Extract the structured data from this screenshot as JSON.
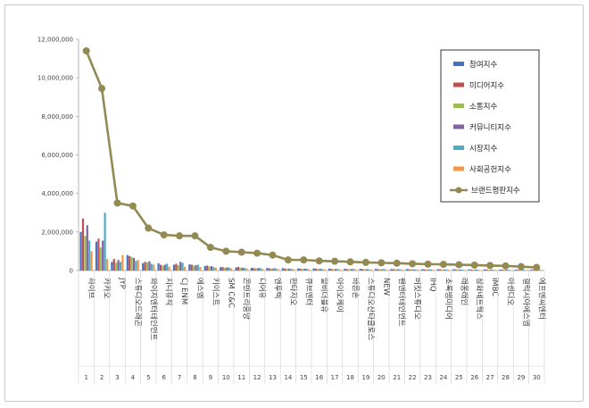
{
  "chart_data": {
    "type": "bar",
    "title": "",
    "xlabel": "",
    "ylabel": "",
    "ylim": [
      0,
      12000000
    ],
    "yticks": [
      "0",
      "2,000,000",
      "4,000,000",
      "6,000,000",
      "8,000,000",
      "10,000,000",
      "12,000,000"
    ],
    "categories": [
      "하이브",
      "카카오",
      "JYP",
      "스튜디오드래곤",
      "와이지엔터테인먼트",
      "지니뮤직",
      "CJ ENM",
      "에스엠",
      "키이스트",
      "SM C&C",
      "콘텐트리중앙",
      "디어유",
      "엔투텍",
      "판타지오",
      "큐브엔터",
      "알비더블유",
      "아이오케이",
      "바른손",
      "스튜디오산타클로스",
      "NEW",
      "팬엔터테인먼트",
      "버킷스튜디오",
      "IHQ",
      "초록뱀미디어",
      "래몽래인",
      "삼화네트웍스",
      "iMBC",
      "아센디오",
      "갤럭시아에스엠",
      "에프엔씨엔터"
    ],
    "numbers": [
      "1",
      "2",
      "3",
      "4",
      "5",
      "6",
      "7",
      "8",
      "9",
      "10",
      "11",
      "12",
      "13",
      "14",
      "15",
      "16",
      "17",
      "18",
      "19",
      "20",
      "21",
      "22",
      "23",
      "24",
      "25",
      "26",
      "27",
      "28",
      "29",
      "30"
    ],
    "series": [
      {
        "name": "참여지수",
        "color": "#4472C4",
        "values": [
          2000000,
          1500000,
          450000,
          800000,
          380000,
          380000,
          300000,
          320000,
          230000,
          170000,
          160000,
          140000,
          130000,
          120000,
          110000,
          110000,
          100000,
          95000,
          90000,
          85000,
          80000,
          75000,
          70000,
          70000,
          65000,
          60000,
          55000,
          50000,
          50000,
          45000
        ]
      },
      {
        "name": "미디어지수",
        "color": "#C0504D",
        "values": [
          2700000,
          1650000,
          600000,
          750000,
          450000,
          300000,
          350000,
          300000,
          260000,
          180000,
          190000,
          120000,
          110000,
          100000,
          90000,
          100000,
          80000,
          70000,
          75000,
          70000,
          70000,
          65000,
          60000,
          60000,
          55000,
          50000,
          50000,
          45000,
          40000,
          40000
        ]
      },
      {
        "name": "소통지수",
        "color": "#9BBB59",
        "values": [
          1800000,
          1200000,
          400000,
          700000,
          420000,
          250000,
          280000,
          250000,
          200000,
          140000,
          150000,
          110000,
          100000,
          90000,
          80000,
          80000,
          70000,
          65000,
          65000,
          60000,
          60000,
          55000,
          50000,
          50000,
          45000,
          45000,
          40000,
          40000,
          35000,
          35000
        ]
      },
      {
        "name": "커뮤니티지수",
        "color": "#8064A2",
        "values": [
          2350000,
          1550000,
          550000,
          650000,
          480000,
          300000,
          450000,
          280000,
          230000,
          160000,
          150000,
          120000,
          110000,
          100000,
          100000,
          90000,
          80000,
          75000,
          70000,
          70000,
          65000,
          60000,
          60000,
          55000,
          50000,
          50000,
          45000,
          45000,
          40000,
          40000
        ]
      },
      {
        "name": "시장지수",
        "color": "#4BACC6",
        "values": [
          1550000,
          3000000,
          450000,
          500000,
          350000,
          350000,
          400000,
          300000,
          180000,
          160000,
          140000,
          140000,
          110000,
          90000,
          90000,
          70000,
          80000,
          90000,
          60000,
          70000,
          60000,
          60000,
          55000,
          50000,
          50000,
          45000,
          40000,
          40000,
          40000,
          35000
        ]
      },
      {
        "name": "사회공헌지수",
        "color": "#F79646",
        "values": [
          1000000,
          600000,
          800000,
          550000,
          300000,
          200000,
          200000,
          180000,
          150000,
          110000,
          100000,
          80000,
          80000,
          70000,
          60000,
          60000,
          50000,
          50000,
          45000,
          40000,
          40000,
          40000,
          35000,
          35000,
          30000,
          30000,
          30000,
          25000,
          25000,
          25000
        ]
      }
    ],
    "line": {
      "name": "브랜드평판지수",
      "color": "#938953",
      "values": [
        11400000,
        9450000,
        3500000,
        3350000,
        2200000,
        1850000,
        1800000,
        1800000,
        1200000,
        1000000,
        950000,
        900000,
        800000,
        550000,
        550000,
        500000,
        480000,
        450000,
        420000,
        400000,
        380000,
        350000,
        330000,
        320000,
        300000,
        280000,
        260000,
        240000,
        200000,
        160000
      ]
    },
    "legend_position": "right"
  }
}
